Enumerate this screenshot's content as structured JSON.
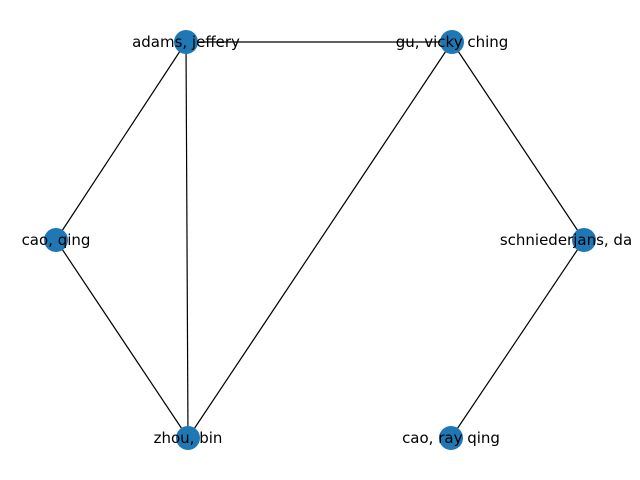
{
  "graph": {
    "colors": {
      "node": "#1f77b4",
      "edge": "#000000",
      "label": "#000000"
    },
    "nodes": [
      {
        "id": "adams",
        "label": "adams, jeffery"
      },
      {
        "id": "gu",
        "label": "gu, vicky ching"
      },
      {
        "id": "cao_qing",
        "label": "cao, qing"
      },
      {
        "id": "schniederjans",
        "label": "schniederjans, da"
      },
      {
        "id": "zhou",
        "label": "zhou, bin"
      },
      {
        "id": "cao_ray",
        "label": "cao, ray qing"
      }
    ],
    "edges": [
      {
        "source": "adams",
        "target": "gu"
      },
      {
        "source": "adams",
        "target": "cao_qing"
      },
      {
        "source": "adams",
        "target": "zhou"
      },
      {
        "source": "gu",
        "target": "zhou"
      },
      {
        "source": "gu",
        "target": "schniederjans"
      },
      {
        "source": "cao_qing",
        "target": "zhou"
      },
      {
        "source": "schniederjans",
        "target": "cao_ray"
      }
    ]
  }
}
